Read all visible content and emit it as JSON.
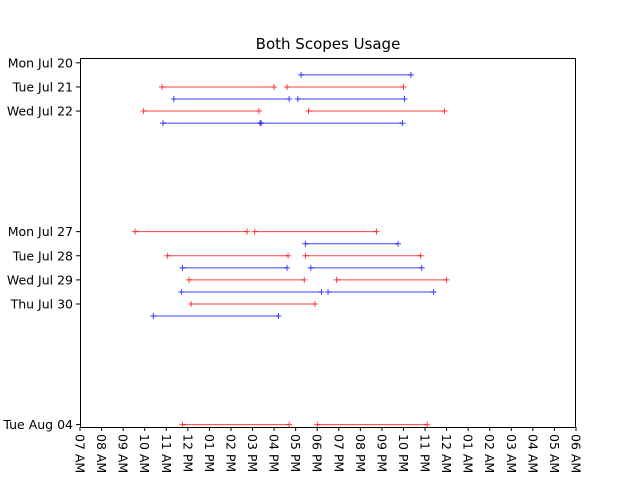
{
  "chart_data": {
    "type": "range",
    "title": "Both Scopes Usage",
    "xlabel": "",
    "ylabel": "",
    "grid": false,
    "x_unit": "hour of day (7 = 07 AM, 24 = 12 AM next day)",
    "xlim": [
      7.0,
      30.0
    ],
    "x_ticks": [
      {
        "value": 7,
        "label": "07 AM"
      },
      {
        "value": 8,
        "label": "08 AM"
      },
      {
        "value": 9,
        "label": "09 AM"
      },
      {
        "value": 10,
        "label": "10 AM"
      },
      {
        "value": 11,
        "label": "11 AM"
      },
      {
        "value": 12,
        "label": "12 PM"
      },
      {
        "value": 13,
        "label": "01 PM"
      },
      {
        "value": 14,
        "label": "02 PM"
      },
      {
        "value": 15,
        "label": "03 PM"
      },
      {
        "value": 16,
        "label": "04 PM"
      },
      {
        "value": 17,
        "label": "05 PM"
      },
      {
        "value": 18,
        "label": "06 PM"
      },
      {
        "value": 19,
        "label": "07 PM"
      },
      {
        "value": 20,
        "label": "08 PM"
      },
      {
        "value": 21,
        "label": "09 PM"
      },
      {
        "value": 22,
        "label": "10 PM"
      },
      {
        "value": 23,
        "label": "11 PM"
      },
      {
        "value": 24,
        "label": "12 AM"
      },
      {
        "value": 25,
        "label": "01 AM"
      },
      {
        "value": 26,
        "label": "02 AM"
      },
      {
        "value": 27,
        "label": "03 AM"
      },
      {
        "value": 28,
        "label": "04 AM"
      },
      {
        "value": 29,
        "label": "05 AM"
      },
      {
        "value": 30,
        "label": "06 AM"
      }
    ],
    "y_unit": "day (0 = Mon Jul 20)",
    "ylim": [
      15.1,
      -0.2
    ],
    "y_ticks": [
      {
        "value": 0,
        "label": "Mon Jul 20"
      },
      {
        "value": 1,
        "label": "Tue Jul 21"
      },
      {
        "value": 2,
        "label": "Wed Jul 22"
      },
      {
        "value": 7,
        "label": "Mon Jul 27"
      },
      {
        "value": 8,
        "label": "Tue Jul 28"
      },
      {
        "value": 9,
        "label": "Wed Jul 29"
      },
      {
        "value": 10,
        "label": "Thu Jul 30"
      },
      {
        "value": 15,
        "label": "Tue Aug 04"
      }
    ],
    "series": [
      {
        "color": "#ff0000",
        "intervals": [
          {
            "y": 1.0,
            "start": 10.8,
            "end": 16.0
          },
          {
            "y": 1.0,
            "start": 16.6,
            "end": 22.0
          },
          {
            "y": 2.0,
            "start": 9.95,
            "end": 15.3
          },
          {
            "y": 2.0,
            "start": 17.6,
            "end": 23.9
          },
          {
            "y": 7.0,
            "start": 9.55,
            "end": 14.75
          },
          {
            "y": 7.0,
            "start": 15.1,
            "end": 20.75
          },
          {
            "y": 8.0,
            "start": 11.05,
            "end": 16.65
          },
          {
            "y": 8.0,
            "start": 17.45,
            "end": 22.8
          },
          {
            "y": 9.0,
            "start": 12.05,
            "end": 17.4
          },
          {
            "y": 9.0,
            "start": 18.9,
            "end": 24.0
          },
          {
            "y": 10.0,
            "start": 12.15,
            "end": 17.9
          },
          {
            "y": 15.0,
            "start": 11.75,
            "end": 16.7
          },
          {
            "y": 15.0,
            "start": 18.0,
            "end": 23.1
          }
        ]
      },
      {
        "color": "#0000ff",
        "intervals": [
          {
            "y": 0.5,
            "start": 17.25,
            "end": 22.35
          },
          {
            "y": 1.5,
            "start": 11.35,
            "end": 16.7
          },
          {
            "y": 1.5,
            "start": 17.1,
            "end": 22.05
          },
          {
            "y": 2.5,
            "start": 10.85,
            "end": 15.35
          },
          {
            "y": 2.5,
            "start": 15.4,
            "end": 21.95
          },
          {
            "y": 7.5,
            "start": 17.45,
            "end": 21.75
          },
          {
            "y": 8.5,
            "start": 11.75,
            "end": 16.6
          },
          {
            "y": 8.5,
            "start": 17.7,
            "end": 22.85
          },
          {
            "y": 9.5,
            "start": 11.7,
            "end": 18.2
          },
          {
            "y": 9.5,
            "start": 18.5,
            "end": 23.4
          },
          {
            "y": 10.5,
            "start": 10.4,
            "end": 16.2
          }
        ]
      }
    ]
  }
}
